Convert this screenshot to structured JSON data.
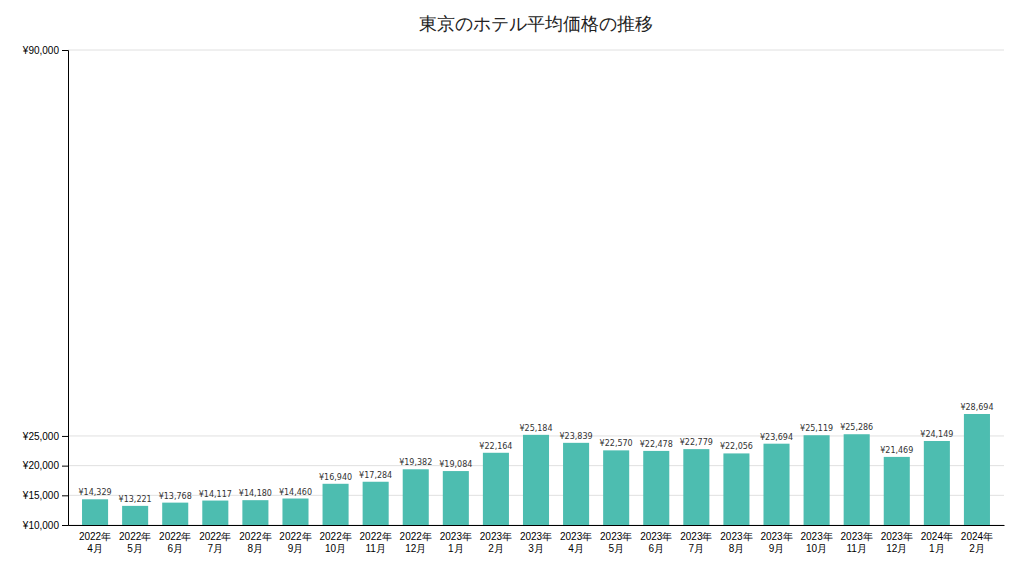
{
  "chart_data": {
    "type": "bar",
    "title": "東京のホテル平均価格の推移",
    "categories": [
      "2022年\n4月",
      "2022年\n5月",
      "2022年\n6月",
      "2022年\n7月",
      "2022年\n8月",
      "2022年\n9月",
      "2022年\n10月",
      "2022年\n11月",
      "2022年\n12月",
      "2023年\n1月",
      "2023年\n2月",
      "2023年\n3月",
      "2023年\n4月",
      "2023年\n5月",
      "2023年\n6月",
      "2023年\n7月",
      "2023年\n8月",
      "2023年\n9月",
      "2023年\n10月",
      "2023年\n11月",
      "2023年\n12月",
      "2024年\n1月",
      "2024年\n2月"
    ],
    "values": [
      14329,
      13221,
      13768,
      14117,
      14180,
      14460,
      16940,
      17284,
      19382,
      19084,
      22164,
      25184,
      23839,
      22570,
      22478,
      22779,
      22056,
      23694,
      25119,
      25286,
      21469,
      24149,
      28694
    ],
    "value_labels": [
      "¥14,329",
      "¥13,221",
      "¥13,768",
      "¥14,117",
      "¥14,180",
      "¥14,460",
      "¥16,940",
      "¥17,284",
      "¥19,382",
      "¥19,084",
      "¥22,164",
      "¥25,184",
      "¥23,839",
      "¥22,570",
      "¥22,478",
      "¥22,779",
      "¥22,056",
      "¥23,694",
      "¥25,119",
      "¥25,286",
      "¥21,469",
      "¥24,149",
      "¥28,694"
    ],
    "data_labels": true,
    "color": "#4DBDB0",
    "ylim": [
      10000,
      90000
    ],
    "yticks": [
      {
        "value": 10000,
        "label": "¥10,000"
      },
      {
        "value": 15000,
        "label": "¥15,000"
      },
      {
        "value": 20000,
        "label": "¥20,000"
      },
      {
        "value": 25000,
        "label": "¥25,000"
      },
      {
        "value": 90000,
        "label": "¥90,000"
      }
    ],
    "grid": true
  }
}
